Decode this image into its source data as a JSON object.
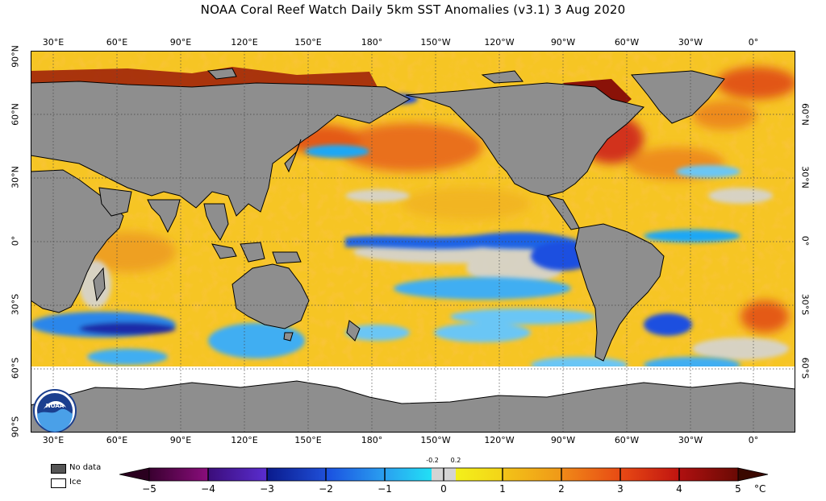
{
  "title": "NOAA Coral Reef Watch Daily 5km SST Anomalies  (v3.1)   3 Aug 2020",
  "axes": {
    "lon_labels": [
      "30°E",
      "60°E",
      "90°E",
      "120°E",
      "150°E",
      "180°",
      "150°W",
      "120°W",
      "90°W",
      "60°W",
      "30°W",
      "0°"
    ],
    "lat_labels_left": [
      "90°N",
      "60°N",
      "30°N",
      "0°",
      "30°S",
      "60°S",
      "90°S"
    ],
    "lat_labels_right": [
      "60°N",
      "30°N",
      "0°",
      "30°S",
      "60°S"
    ]
  },
  "legend": {
    "no_data_label": "No data",
    "ice_label": "Ice",
    "no_data_color": "#555555",
    "ice_color": "#ffffff"
  },
  "colorbar": {
    "ticks": [
      "−5",
      "−4",
      "−3",
      "−2",
      "−1",
      "0",
      "1",
      "2",
      "3",
      "4",
      "5"
    ],
    "neutral_band_labels": [
      "-0.2",
      "0.2"
    ],
    "unit": "°C",
    "colors": [
      "#3a0030",
      "#4b0b6a",
      "#1c1c9c",
      "#1a4fe0",
      "#1ea7f5",
      "#d4d4d4",
      "#f3e21a",
      "#f3a818",
      "#f06018",
      "#c51813",
      "#7a0c06"
    ]
  },
  "map": {
    "land_color": "#8e8e8e",
    "ice_color": "#ffffff",
    "gridline_color": "#444444",
    "ocean_base_color": "#f6c524"
  }
}
